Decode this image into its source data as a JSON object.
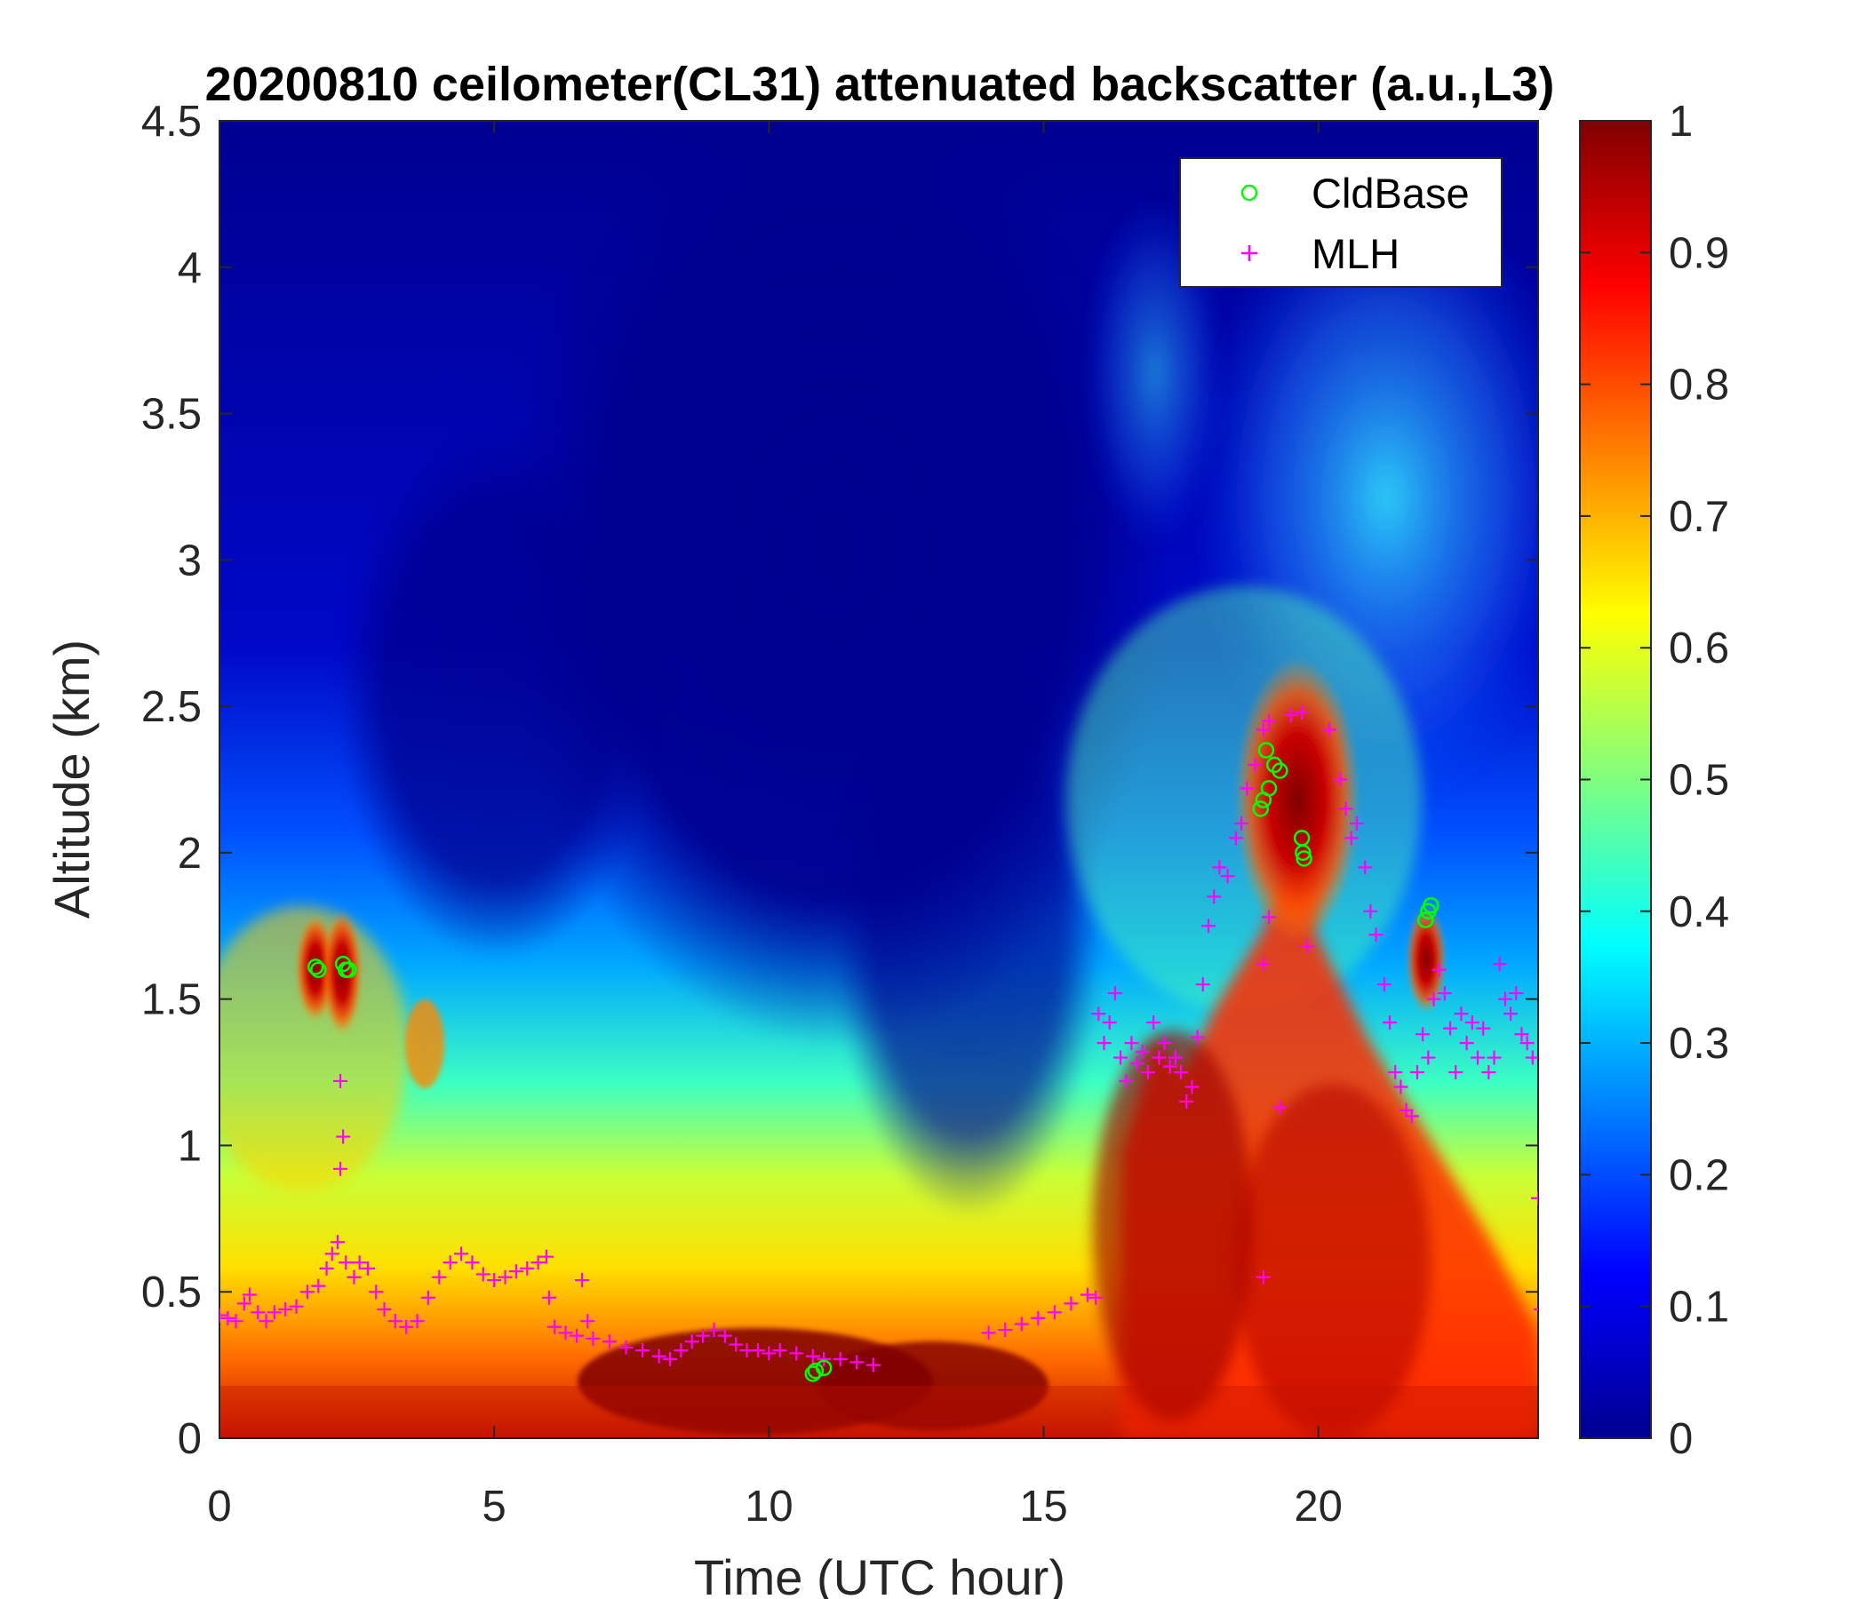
{
  "chart_data": {
    "type": "heatmap",
    "title": "20200810 ceilometer(CL31) attenuated backscatter (a.u.,L3)",
    "xlabel": "Time (UTC hour)",
    "ylabel": "Altitude (km)",
    "xlim": [
      0,
      24
    ],
    "ylim": [
      0,
      4.5
    ],
    "x_ticks": [
      "0",
      "5",
      "10",
      "15",
      "20"
    ],
    "y_ticks": [
      "0",
      "0.5",
      "1",
      "1.5",
      "2",
      "2.5",
      "3",
      "3.5",
      "4",
      "4.5"
    ],
    "colorbar": {
      "ticks": [
        "0",
        "0.1",
        "0.2",
        "0.3",
        "0.4",
        "0.5",
        "0.6",
        "0.7",
        "0.8",
        "0.9",
        "1"
      ],
      "range": [
        0,
        1
      ],
      "colormap": "jet"
    },
    "legend": {
      "position": "top-right",
      "entries": [
        {
          "label": "CldBase",
          "marker": "o",
          "color": "#00ff00"
        },
        {
          "label": "MLH",
          "marker": "+",
          "color": "#ff00ff"
        }
      ]
    },
    "series": [
      {
        "name": "CldBase",
        "marker": "circle",
        "color": "#00ff00",
        "points": [
          [
            1.75,
            1.61
          ],
          [
            1.8,
            1.6
          ],
          [
            2.25,
            1.62
          ],
          [
            2.3,
            1.6
          ],
          [
            2.35,
            1.6
          ],
          [
            10.8,
            0.22
          ],
          [
            10.85,
            0.23
          ],
          [
            11.0,
            0.24
          ],
          [
            18.95,
            2.15
          ],
          [
            19.0,
            2.18
          ],
          [
            19.05,
            2.35
          ],
          [
            19.1,
            2.22
          ],
          [
            19.2,
            2.3
          ],
          [
            19.3,
            2.28
          ],
          [
            19.7,
            2.05
          ],
          [
            19.72,
            2.0
          ],
          [
            19.74,
            1.98
          ],
          [
            21.95,
            1.77
          ],
          [
            22.0,
            1.8
          ],
          [
            22.05,
            1.82
          ]
        ]
      },
      {
        "name": "MLH",
        "marker": "plus",
        "color": "#ff00ff",
        "points": [
          [
            0.0,
            0.42
          ],
          [
            0.15,
            0.41
          ],
          [
            0.3,
            0.4
          ],
          [
            0.45,
            0.46
          ],
          [
            0.55,
            0.49
          ],
          [
            0.7,
            0.43
          ],
          [
            0.85,
            0.4
          ],
          [
            1.0,
            0.43
          ],
          [
            1.2,
            0.44
          ],
          [
            1.4,
            0.45
          ],
          [
            1.6,
            0.5
          ],
          [
            1.8,
            0.52
          ],
          [
            1.95,
            0.58
          ],
          [
            2.05,
            0.63
          ],
          [
            2.15,
            0.67
          ],
          [
            2.3,
            0.6
          ],
          [
            2.45,
            0.55
          ],
          [
            2.55,
            0.6
          ],
          [
            2.7,
            0.58
          ],
          [
            2.85,
            0.5
          ],
          [
            3.0,
            0.44
          ],
          [
            3.2,
            0.4
          ],
          [
            3.4,
            0.38
          ],
          [
            3.6,
            0.4
          ],
          [
            3.8,
            0.48
          ],
          [
            4.0,
            0.55
          ],
          [
            4.2,
            0.6
          ],
          [
            4.4,
            0.63
          ],
          [
            4.6,
            0.6
          ],
          [
            4.8,
            0.56
          ],
          [
            5.0,
            0.54
          ],
          [
            5.2,
            0.55
          ],
          [
            5.4,
            0.57
          ],
          [
            5.6,
            0.58
          ],
          [
            5.8,
            0.6
          ],
          [
            5.95,
            0.62
          ],
          [
            2.2,
            1.22
          ],
          [
            2.25,
            1.03
          ],
          [
            2.2,
            0.92
          ],
          [
            6.0,
            0.48
          ],
          [
            6.6,
            0.54
          ],
          [
            6.7,
            0.4
          ],
          [
            6.1,
            0.38
          ],
          [
            6.3,
            0.36
          ],
          [
            6.5,
            0.35
          ],
          [
            6.8,
            0.34
          ],
          [
            7.1,
            0.33
          ],
          [
            7.4,
            0.31
          ],
          [
            7.7,
            0.3
          ],
          [
            8.0,
            0.28
          ],
          [
            8.2,
            0.27
          ],
          [
            8.4,
            0.3
          ],
          [
            8.6,
            0.33
          ],
          [
            8.8,
            0.35
          ],
          [
            9.0,
            0.37
          ],
          [
            9.2,
            0.35
          ],
          [
            9.4,
            0.32
          ],
          [
            9.6,
            0.3
          ],
          [
            9.8,
            0.3
          ],
          [
            10.0,
            0.29
          ],
          [
            10.2,
            0.3
          ],
          [
            10.5,
            0.29
          ],
          [
            10.8,
            0.28
          ],
          [
            11.0,
            0.27
          ],
          [
            11.3,
            0.27
          ],
          [
            11.6,
            0.26
          ],
          [
            11.9,
            0.25
          ],
          [
            14.0,
            0.36
          ],
          [
            14.3,
            0.37
          ],
          [
            14.6,
            0.39
          ],
          [
            14.9,
            0.41
          ],
          [
            15.2,
            0.43
          ],
          [
            15.5,
            0.46
          ],
          [
            15.8,
            0.49
          ],
          [
            15.95,
            0.48
          ],
          [
            16.0,
            1.45
          ],
          [
            16.1,
            1.35
          ],
          [
            16.2,
            1.42
          ],
          [
            16.3,
            1.52
          ],
          [
            16.4,
            1.3
          ],
          [
            16.5,
            1.22
          ],
          [
            16.6,
            1.35
          ],
          [
            16.7,
            1.28
          ],
          [
            16.8,
            1.32
          ],
          [
            16.9,
            1.25
          ],
          [
            17.0,
            1.42
          ],
          [
            17.1,
            1.3
          ],
          [
            17.2,
            1.35
          ],
          [
            17.3,
            1.27
          ],
          [
            17.4,
            1.3
          ],
          [
            17.5,
            1.25
          ],
          [
            17.6,
            1.15
          ],
          [
            17.7,
            1.2
          ],
          [
            17.8,
            1.37
          ],
          [
            17.9,
            1.55
          ],
          [
            18.0,
            1.75
          ],
          [
            18.1,
            1.85
          ],
          [
            18.2,
            1.95
          ],
          [
            18.35,
            1.92
          ],
          [
            18.5,
            2.05
          ],
          [
            18.6,
            2.1
          ],
          [
            18.7,
            2.22
          ],
          [
            18.85,
            2.3
          ],
          [
            19.0,
            2.42
          ],
          [
            19.1,
            2.45
          ],
          [
            19.0,
            1.62
          ],
          [
            19.1,
            1.78
          ],
          [
            19.3,
            1.13
          ],
          [
            19.0,
            0.55
          ],
          [
            19.5,
            2.47
          ],
          [
            19.7,
            2.48
          ],
          [
            19.8,
            1.68
          ],
          [
            20.2,
            2.42
          ],
          [
            20.4,
            2.25
          ],
          [
            20.5,
            2.15
          ],
          [
            20.6,
            2.05
          ],
          [
            20.7,
            2.1
          ],
          [
            20.85,
            1.95
          ],
          [
            20.95,
            1.8
          ],
          [
            21.05,
            1.72
          ],
          [
            21.2,
            1.55
          ],
          [
            21.3,
            1.42
          ],
          [
            21.4,
            1.25
          ],
          [
            21.5,
            1.2
          ],
          [
            21.6,
            1.12
          ],
          [
            21.7,
            1.1
          ],
          [
            21.8,
            1.25
          ],
          [
            21.9,
            1.38
          ],
          [
            22.0,
            1.3
          ],
          [
            22.1,
            1.5
          ],
          [
            22.2,
            1.6
          ],
          [
            22.3,
            1.52
          ],
          [
            22.4,
            1.4
          ],
          [
            22.5,
            1.25
          ],
          [
            22.6,
            1.45
          ],
          [
            22.7,
            1.35
          ],
          [
            22.8,
            1.42
          ],
          [
            22.9,
            1.3
          ],
          [
            23.0,
            1.4
          ],
          [
            23.1,
            1.25
          ],
          [
            23.2,
            1.3
          ],
          [
            23.3,
            1.62
          ],
          [
            23.4,
            1.5
          ],
          [
            23.5,
            1.45
          ],
          [
            23.6,
            1.52
          ],
          [
            23.7,
            1.38
          ],
          [
            23.8,
            1.35
          ],
          [
            23.9,
            1.3
          ],
          [
            24.0,
            0.82
          ],
          [
            24.05,
            0.44
          ]
        ]
      }
    ]
  }
}
